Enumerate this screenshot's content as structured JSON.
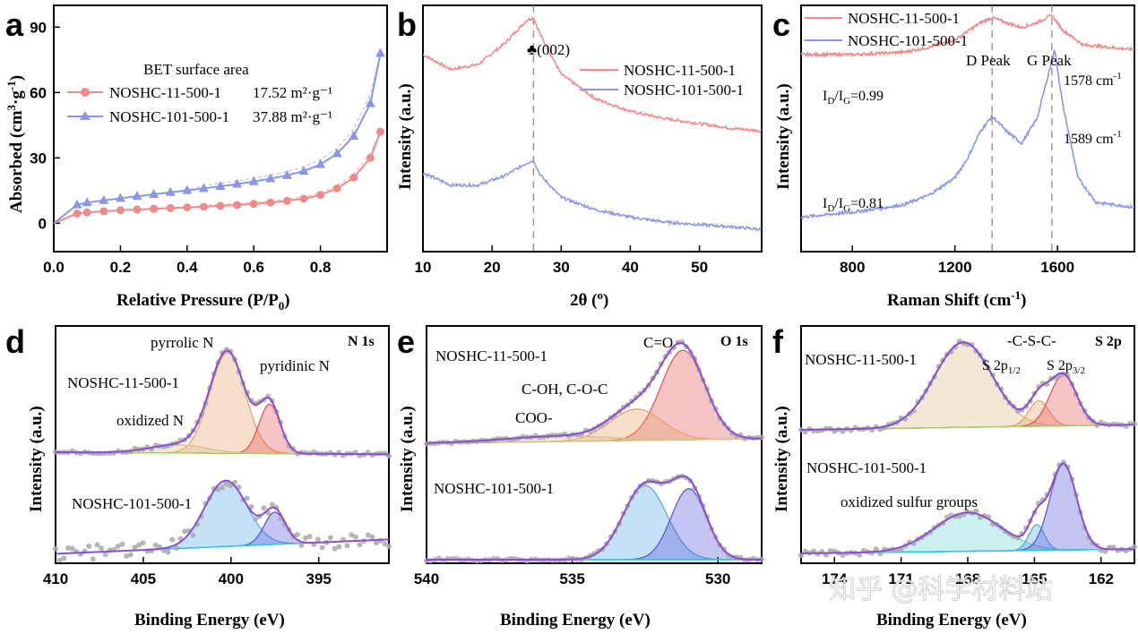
{
  "chart_data": [
    {
      "panel": "a",
      "type": "line",
      "xlabel": "Relative Pressure (P/P0)",
      "ylabel": "Absorbed (cm3·g-1)",
      "xlim": [
        0.0,
        1.0
      ],
      "ylim": [
        -13,
        100
      ],
      "xticks": [
        "0.0",
        "0.2",
        "0.4",
        "0.6",
        "0.8"
      ],
      "xtick_values": [
        0.0,
        0.2,
        0.4,
        0.6,
        0.8
      ],
      "yticks": [
        "0",
        "30",
        "60",
        "90"
      ],
      "ytick_values": [
        0,
        30,
        60,
        90
      ],
      "legend_title": "BET surface area",
      "series": [
        {
          "name": "NOSHC-11-500-1",
          "value_label": "17.52 m²·g⁻¹",
          "color": "#f08a8a",
          "marker": "circle",
          "x": [
            0.07,
            0.1,
            0.15,
            0.2,
            0.25,
            0.3,
            0.35,
            0.4,
            0.45,
            0.5,
            0.55,
            0.6,
            0.65,
            0.7,
            0.75,
            0.8,
            0.85,
            0.9,
            0.95,
            0.98
          ],
          "y": [
            4.5,
            5.0,
            5.5,
            6.0,
            6.3,
            6.6,
            7.0,
            7.3,
            7.6,
            8.0,
            8.4,
            8.9,
            9.5,
            10.3,
            11.3,
            13.0,
            16.0,
            21.0,
            30.0,
            42.0
          ]
        },
        {
          "name": "NOSHC-101-500-1",
          "value_label": "37.88 m²·g⁻¹",
          "color": "#8c96e6",
          "marker": "triangle",
          "x": [
            0.07,
            0.1,
            0.15,
            0.2,
            0.25,
            0.3,
            0.35,
            0.4,
            0.45,
            0.5,
            0.55,
            0.6,
            0.65,
            0.7,
            0.75,
            0.8,
            0.85,
            0.9,
            0.95,
            0.98
          ],
          "y": [
            8.5,
            9.5,
            10.5,
            11.5,
            12.4,
            13.3,
            14.2,
            15.1,
            16.0,
            17.0,
            18.0,
            19.2,
            20.5,
            22.0,
            24.0,
            27.0,
            32.0,
            40.0,
            55.0,
            78.0
          ]
        }
      ]
    },
    {
      "panel": "b",
      "type": "line",
      "xlabel": "2θ (°)",
      "ylabel": "Intensity (a.u.)",
      "xlim": [
        10,
        59
      ],
      "xticks": [
        "10",
        "20",
        "30",
        "40",
        "50"
      ],
      "xtick_values": [
        10,
        20,
        30,
        40,
        50
      ],
      "annotation": "♣(002)",
      "dashed_line_at": 26,
      "series": [
        {
          "name": "NOSHC-11-500-1",
          "color": "#f08a8a",
          "x": [
            10,
            14,
            18,
            22,
            25,
            26,
            27,
            30,
            35,
            40,
            45,
            50,
            55,
            59
          ],
          "y": [
            0.8,
            0.74,
            0.76,
            0.85,
            0.94,
            0.95,
            0.88,
            0.72,
            0.62,
            0.57,
            0.54,
            0.52,
            0.5,
            0.49
          ]
        },
        {
          "name": "NOSHC-101-500-1",
          "color": "#8c96e6",
          "x": [
            10,
            14,
            18,
            22,
            25,
            26,
            27,
            30,
            35,
            40,
            45,
            50,
            55,
            59
          ],
          "y": [
            0.32,
            0.27,
            0.27,
            0.31,
            0.36,
            0.37,
            0.31,
            0.22,
            0.17,
            0.14,
            0.12,
            0.11,
            0.1,
            0.09
          ]
        }
      ]
    },
    {
      "panel": "c",
      "type": "line",
      "xlabel": "Raman Shift (cm-1)",
      "ylabel": "Intensity (a.u.)",
      "xlim": [
        600,
        1900
      ],
      "xticks": [
        "800",
        "1200",
        "1600"
      ],
      "xtick_values": [
        800,
        1200,
        1600
      ],
      "peak_labels": [
        "D Peak",
        "G Peak"
      ],
      "dashed_lines_at": [
        1345,
        1578
      ],
      "annotations": [
        "ID/IG=0.99",
        "ID/IG=0.81",
        "1578 cm-1",
        "1589 cm-1"
      ],
      "series": [
        {
          "name": "NOSHC-11-500-1",
          "color": "#f08a8a",
          "x": [
            600,
            800,
            1000,
            1100,
            1200,
            1300,
            1345,
            1400,
            1460,
            1520,
            1578,
            1620,
            1700,
            1800,
            1900
          ],
          "y": [
            0.8,
            0.8,
            0.81,
            0.83,
            0.86,
            0.93,
            0.95,
            0.93,
            0.91,
            0.93,
            0.96,
            0.9,
            0.84,
            0.83,
            0.82
          ]
        },
        {
          "name": "NOSHC-101-500-1",
          "color": "#8c96e6",
          "x": [
            600,
            800,
            1000,
            1100,
            1200,
            1250,
            1300,
            1345,
            1400,
            1460,
            1520,
            1589,
            1620,
            1680,
            1750,
            1900
          ],
          "y": [
            0.14,
            0.16,
            0.19,
            0.23,
            0.3,
            0.38,
            0.49,
            0.55,
            0.49,
            0.44,
            0.54,
            0.82,
            0.6,
            0.3,
            0.2,
            0.18
          ]
        }
      ]
    },
    {
      "panel": "d",
      "type": "line",
      "title": "N 1s",
      "xlabel": "Binding Energy (eV)",
      "ylabel": "Intensity (a.u.)",
      "xlim": [
        410,
        391
      ],
      "xticks": [
        "410",
        "405",
        "400",
        "395"
      ],
      "xtick_values": [
        410,
        405,
        400,
        395
      ],
      "labels": [
        "pyrrolic N",
        "pyridinic N",
        "oxidized N",
        "NOSHC-11-500-1",
        "NOSHC-101-500-1"
      ]
    },
    {
      "panel": "e",
      "type": "line",
      "title": "O 1s",
      "xlabel": "Binding Energy (eV)",
      "ylabel": "Intensity (a.u.)",
      "xlim": [
        540,
        528.5
      ],
      "xticks": [
        "540",
        "535",
        "530"
      ],
      "xtick_values": [
        540,
        535,
        530
      ],
      "labels": [
        "C=O",
        "C-OH, C-O-C",
        "COO-",
        "NOSHC-11-500-1",
        "NOSHC-101-500-1"
      ]
    },
    {
      "panel": "f",
      "type": "line",
      "title": "S 2p",
      "xlabel": "Binding Energy (eV)",
      "ylabel": "Intensity (a.u.)",
      "xlim": [
        175.5,
        160.5
      ],
      "xticks": [
        "174",
        "171",
        "168",
        "165",
        "162"
      ],
      "xtick_values": [
        174,
        171,
        168,
        165,
        162
      ],
      "labels": [
        "-C-S-C-",
        "S 2p1/2",
        "S 2p3/2",
        "oxidized sulfur groups",
        "NOSHC-11-500-1",
        "NOSHC-101-500-1"
      ]
    }
  ],
  "panel_letters": [
    "a",
    "b",
    "c",
    "d",
    "e",
    "f"
  ],
  "watermark": "知乎 @科学材料站",
  "colors": {
    "red": "#f08a8a",
    "blue": "#8c96e6",
    "purple": "#8a4fd0",
    "gray": "#a9a9a9",
    "baseline": "#9ed36a",
    "cyan": "#2ec9e0",
    "orange": "#e6a36a",
    "khaki": "#d8c188"
  }
}
